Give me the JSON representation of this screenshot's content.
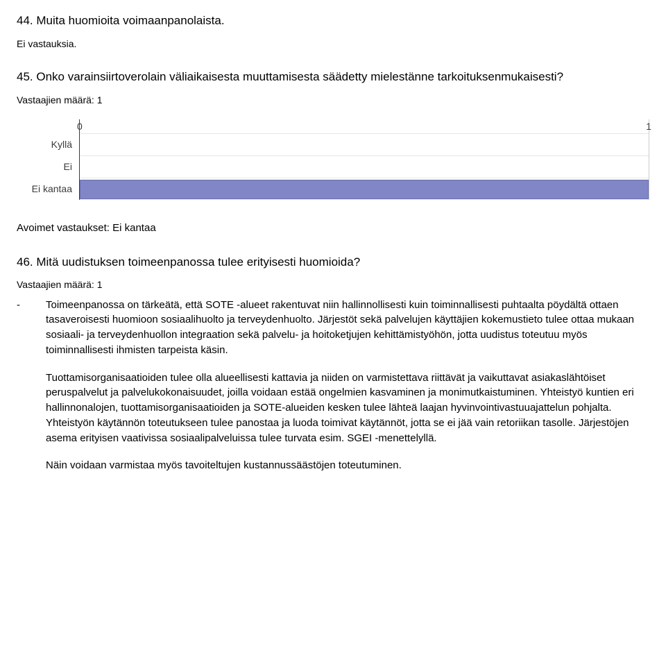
{
  "q44": {
    "title": "44. Muita huomioita voimaanpanolaista.",
    "no_answers": "Ei vastauksia."
  },
  "q45": {
    "title": "45. Onko varainsiirtoverolain väliaikaisesta muuttamisesta säädetty mielestänne tarkoituksenmukaisesti?",
    "resp_count": "Vastaajien määrä: 1",
    "chart": {
      "axis_min": "0",
      "axis_max": "1",
      "rows": [
        {
          "label": "Kyllä",
          "value": 0
        },
        {
          "label": "Ei",
          "value": 0
        },
        {
          "label": "Ei kantaa",
          "value": 1
        }
      ],
      "max_value": 1,
      "bar_color": "#8186c6",
      "bar_border": "#6b70b2",
      "grid_color": "#e6e6e6",
      "axis_color": "#3b3b3b"
    },
    "open_header": "Avoimet vastaukset: Ei kantaa"
  },
  "q46": {
    "title": "46. Mitä uudistuksen toimeenpanossa tulee erityisesti huomioida?",
    "resp_count": "Vastaajien määrä: 1",
    "dash": "-",
    "para1": "Toimeenpanossa on tärkeätä, että SOTE -alueet rakentuvat niin hallinnollisesti kuin toiminnallisesti puhtaalta pöydältä ottaen tasaveroisesti huomioon sosiaalihuolto ja terveydenhuolto. Järjestöt sekä palvelujen käyttäjien kokemustieto tulee ottaa mukaan sosiaali- ja terveydenhuollon integraation sekä palvelu- ja hoitoketjujen kehittämistyöhön, jotta uudistus toteutuu myös toiminnallisesti ihmisten tarpeista käsin.",
    "para2": "Tuottamisorganisaatioiden tulee olla alueellisesti kattavia ja niiden on varmistettava riittävät ja vaikuttavat asiakaslähtöiset peruspalvelut ja palvelukokonaisuudet, joilla voidaan estää ongelmien kasvaminen ja monimutkaistuminen. Yhteistyö kuntien eri hallinnonalojen, tuottamisorganisaatioiden ja SOTE-alueiden kesken tulee lähteä laajan hyvinvointivastuuajattelun pohjalta. Yhteistyön käytännön toteutukseen tulee panostaa ja luoda toimivat käytännöt, jotta se ei jää vain retoriikan tasolle. Järjestöjen asema erityisen vaativissa sosiaalipalveluissa tulee turvata esim. SGEI -menettelyllä.",
    "para3": "Näin voidaan varmistaa myös tavoiteltujen kustannussäästöjen toteutuminen."
  }
}
